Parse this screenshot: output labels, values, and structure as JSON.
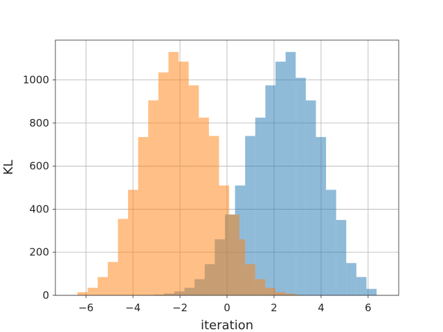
{
  "chart_data": {
    "type": "histogram",
    "title": "",
    "xlabel": "iteration",
    "ylabel": "KL",
    "xlim": [
      -7.3,
      7.3
    ],
    "ylim": [
      0,
      1185
    ],
    "xticks": [
      -6,
      -4,
      -2,
      0,
      2,
      4,
      6
    ],
    "yticks": [
      0,
      200,
      400,
      600,
      800,
      1000
    ],
    "grid": true,
    "legend": "none",
    "series": [
      {
        "color": "#1f77b4",
        "alpha": 0.5,
        "bin_edges": [
          -3.1,
          -2.67,
          -2.24,
          -1.81,
          -1.38,
          -0.95,
          -0.52,
          -0.09,
          0.34,
          0.77,
          1.2,
          1.63,
          2.06,
          2.49,
          2.92,
          3.35,
          3.78,
          4.21,
          4.64,
          5.07,
          5.5,
          5.93,
          6.36
        ],
        "values": [
          3,
          8,
          18,
          35,
          75,
          145,
          260,
          375,
          510,
          740,
          825,
          975,
          1085,
          1130,
          1010,
          905,
          735,
          490,
          350,
          150,
          85,
          30
        ]
      },
      {
        "color": "#ff7f0e",
        "alpha": 0.5,
        "bin_edges": [
          -6.36,
          -5.93,
          -5.5,
          -5.07,
          -4.64,
          -4.21,
          -3.78,
          -3.35,
          -2.92,
          -2.49,
          -2.06,
          -1.63,
          -1.2,
          -0.77,
          -0.34,
          0.09,
          0.52,
          0.77,
          1.2,
          1.63,
          2.06,
          2.49,
          2.92,
          3.1
        ],
        "values": [
          15,
          35,
          85,
          155,
          355,
          490,
          735,
          905,
          1035,
          1130,
          1085,
          975,
          825,
          740,
          510,
          375,
          260,
          145,
          75,
          35,
          15,
          8,
          3
        ]
      }
    ]
  }
}
